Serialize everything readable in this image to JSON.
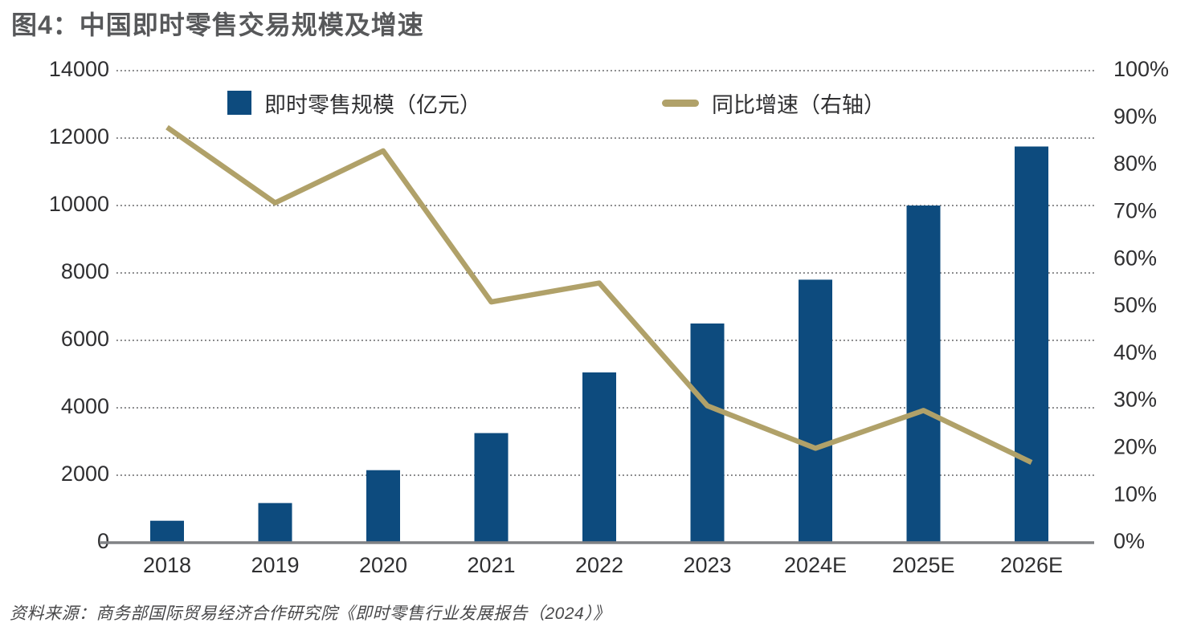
{
  "title": "图4：中国即时零售交易规模及增速",
  "source": "资料来源：商务部国际贸易经济合作研究院《即时零售行业发展报告（2024）》",
  "colors": {
    "bar": "#0d4b7e",
    "line": "#b0a169",
    "grid": "#58595b",
    "axis_line": "#808285",
    "tick_text": "#2f2f31",
    "title_text": "#57585a"
  },
  "legend": [
    {
      "label": "即时零售规模（亿元）",
      "type": "bar"
    },
    {
      "label": "同比增速（右轴）",
      "type": "line"
    }
  ],
  "chart_data": {
    "type": "bar",
    "subtype": "bar+line combo, dual axis",
    "title": "图4：中国即时零售交易规模及增速",
    "categories": [
      "2018",
      "2019",
      "2020",
      "2021",
      "2022",
      "2023",
      "2024E",
      "2025E",
      "2026E"
    ],
    "series": [
      {
        "name": "即时零售规模（亿元）",
        "type": "bar",
        "axis": "left",
        "color": "#0d4b7e",
        "values": [
          650,
          1175,
          2150,
          3250,
          5050,
          6500,
          7800,
          10000,
          11750
        ]
      },
      {
        "name": "同比增速（右轴）",
        "type": "line",
        "axis": "right",
        "color": "#b0a169",
        "values": [
          88,
          72,
          83,
          51,
          55,
          29,
          20,
          28,
          17
        ]
      }
    ],
    "left_axis": {
      "min": 0,
      "max": 14000,
      "step": 2000,
      "tick_labels": [
        "0",
        "2000",
        "4000",
        "6000",
        "8000",
        "10000",
        "12000",
        "14000"
      ]
    },
    "right_axis": {
      "min": 0,
      "max": 100,
      "step": 10,
      "unit": "%",
      "tick_labels": [
        "0%",
        "10%",
        "20%",
        "30%",
        "40%",
        "50%",
        "60%",
        "70%",
        "80%",
        "90%",
        "100%"
      ]
    },
    "grid": "horizontal dotted lines at left-axis steps",
    "legend_position": "top inside plot"
  }
}
